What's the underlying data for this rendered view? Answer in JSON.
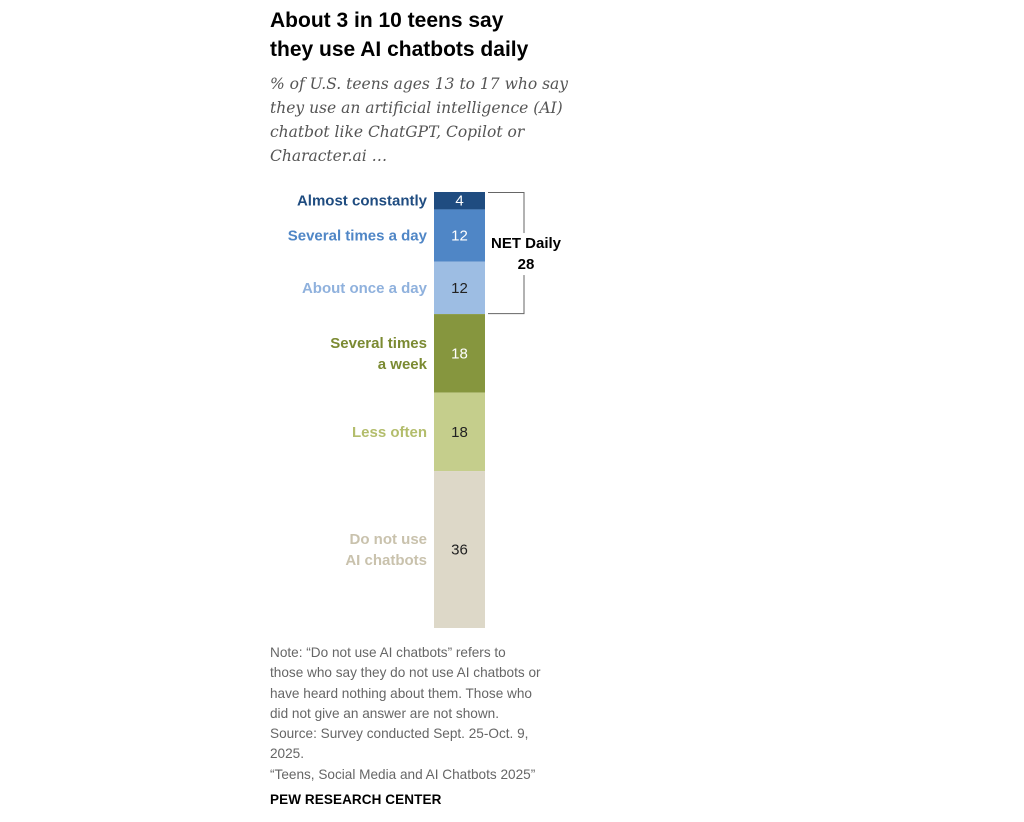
{
  "title_line1": "About 3 in 10 teens say",
  "title_line2": "they use AI chatbots daily",
  "subtitle_lines": [
    "% of U.S. teens ages 13 to 17 who say",
    "they use an artificial intelligence (AI)",
    "chatbot like ChatGPT, Copilot or",
    "Character.ai …"
  ],
  "chart_data": {
    "type": "bar",
    "orientation": "stacked-vertical",
    "title": "About 3 in 10 teens say they use AI chatbots daily",
    "unit": "%",
    "categories": [
      {
        "label_lines": [
          "Almost constantly"
        ],
        "value": 4,
        "label": "4",
        "color": "#1f4c80",
        "value_color": "#ffffff"
      },
      {
        "label_lines": [
          "Several times a day"
        ],
        "value": 12,
        "label": "12",
        "color": "#4f86c6",
        "value_color": "#ffffff"
      },
      {
        "label_lines": [
          "About once a day"
        ],
        "value": 12,
        "label": "12",
        "color": "#9dbde3",
        "value_color": "#222222"
      },
      {
        "label_lines": [
          "Several times",
          "a week"
        ],
        "value": 18,
        "label": "18",
        "color": "#86963e",
        "value_color": "#ffffff"
      },
      {
        "label_lines": [
          "Less often"
        ],
        "value": 18,
        "label": "18",
        "color": "#c5ce8c",
        "value_color": "#222222"
      },
      {
        "label_lines": [
          "Do not use",
          "AI chatbots"
        ],
        "value": 36,
        "label": "36",
        "color": "#ddd8c8",
        "value_color": "#222222"
      }
    ],
    "label_colors": [
      "#1f4c80",
      "#4f86c6",
      "#8fb1dd",
      "#7b8a32",
      "#b3bd6c",
      "#c9c2ad"
    ],
    "net": {
      "label": "NET Daily",
      "value": "28",
      "spans_categories": [
        0,
        1,
        2
      ]
    }
  },
  "note_lines": [
    "Note: “Do not use AI chatbots” refers to",
    "those who say they do not use AI chatbots or",
    "have heard nothing about them. Those who",
    "did not give an answer are not shown.",
    "Source: Survey conducted Sept. 25-Oct. 9,",
    "2025.",
    "“Teens, Social Media and AI Chatbots 2025”"
  ],
  "brand": "PEW RESEARCH CENTER"
}
